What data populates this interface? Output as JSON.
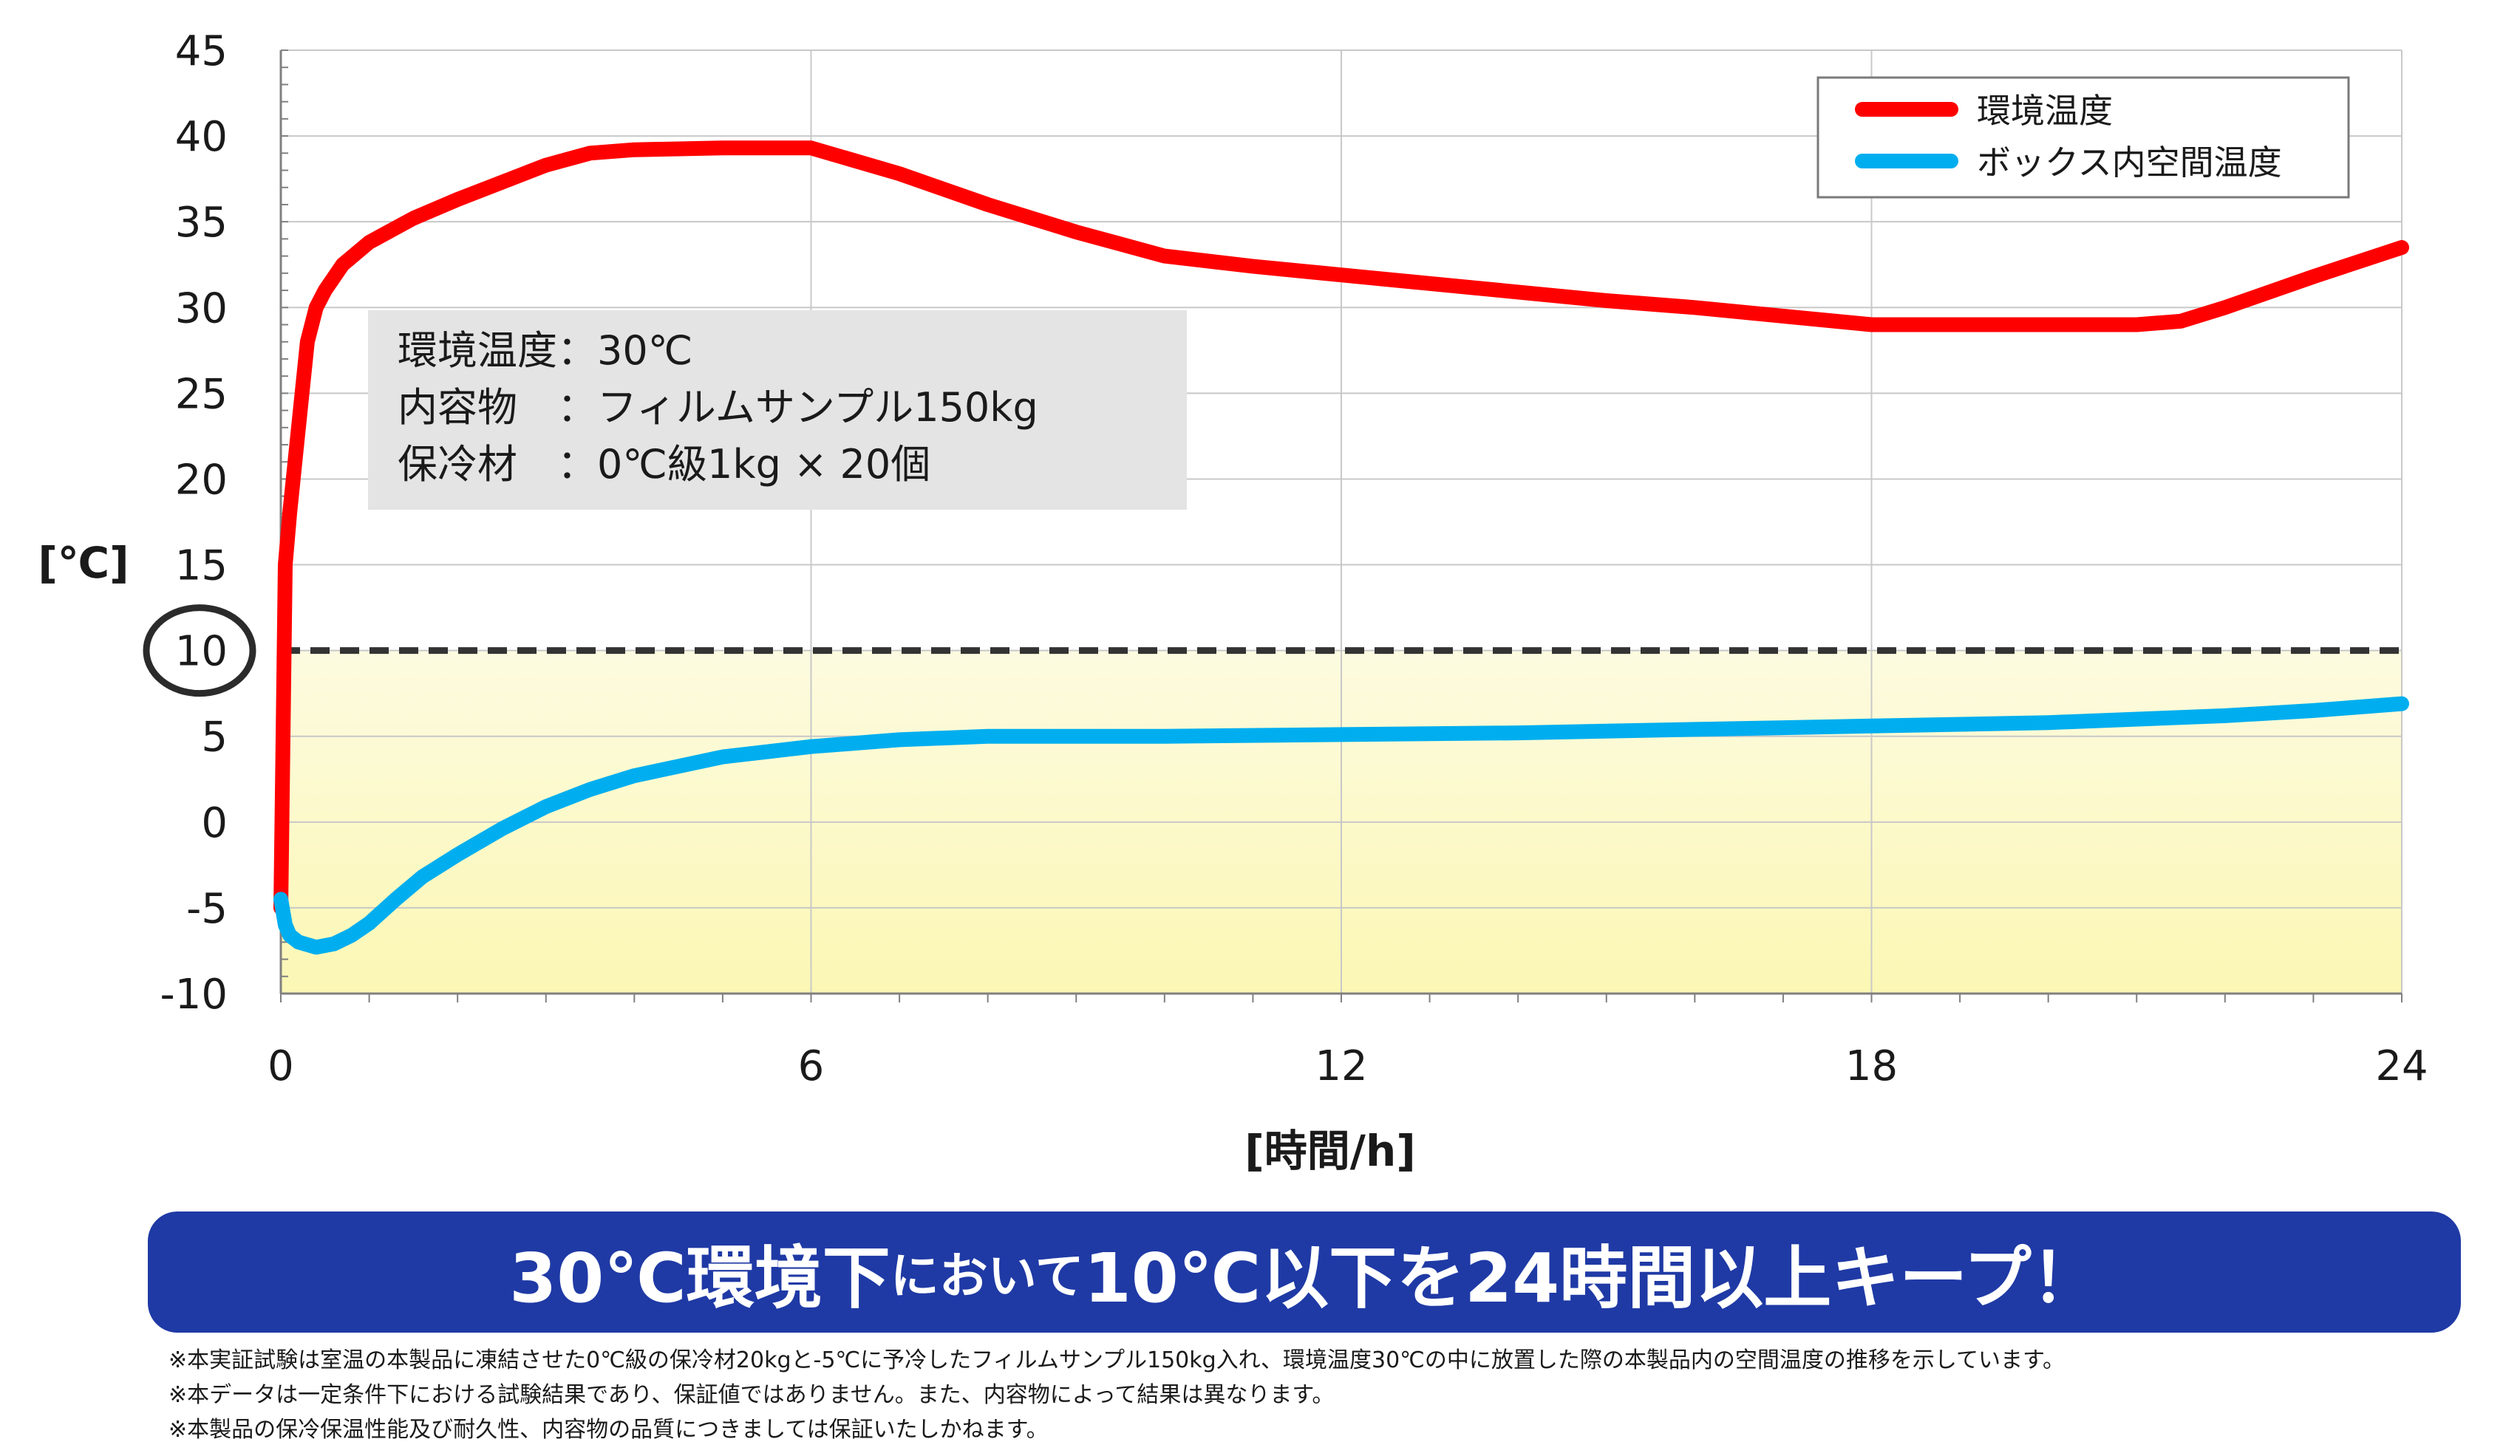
{
  "chart_data": {
    "type": "line",
    "ylabel": "[℃]",
    "xlabel": "[時間/h]",
    "xlim": [
      0,
      24
    ],
    "ylim": [
      -10,
      45
    ],
    "x_ticks": [
      "0",
      "6",
      "12",
      "18",
      "24"
    ],
    "y_ticks": [
      "45",
      "40",
      "35",
      "30",
      "25",
      "20",
      "15",
      "10",
      "5",
      "0",
      "-5",
      "-10"
    ],
    "highlighted_tick": "10",
    "grid": true,
    "legend_position": "top-right",
    "threshold": {
      "value": 10,
      "style": "dashed",
      "color": "#333333"
    },
    "shaded_band": {
      "from": -10,
      "to": 10,
      "color": "#fbf7b4"
    },
    "series": [
      {
        "name": "環境温度",
        "color": "#ff0000",
        "x": [
          0,
          0.05,
          0.1,
          0.2,
          0.3,
          0.4,
          0.5,
          0.7,
          1.0,
          1.5,
          2.0,
          2.5,
          3.0,
          3.5,
          4.0,
          5.0,
          6.0,
          7.0,
          8.0,
          9.0,
          10.0,
          11.0,
          12.0,
          13.0,
          14.0,
          15.0,
          16.0,
          17.0,
          18.0,
          19.0,
          20.0,
          21.0,
          21.5,
          22.0,
          23.0,
          24.0
        ],
        "y": [
          -5,
          15,
          18,
          23,
          28,
          30,
          31,
          32.5,
          33.8,
          35.2,
          36.3,
          37.3,
          38.3,
          39.0,
          39.2,
          39.3,
          39.3,
          37.8,
          36.0,
          34.4,
          33.0,
          32.4,
          31.9,
          31.4,
          30.9,
          30.4,
          30.0,
          29.5,
          29.0,
          29.0,
          29.0,
          29.0,
          29.2,
          30.0,
          31.8,
          33.5
        ]
      },
      {
        "name": "ボックス内空間温度",
        "color": "#00aeef",
        "x": [
          0,
          0.05,
          0.1,
          0.2,
          0.4,
          0.6,
          0.8,
          1.0,
          1.3,
          1.6,
          2.0,
          2.5,
          3.0,
          3.5,
          4.0,
          5.0,
          6.0,
          7.0,
          8.0,
          9.0,
          10.0,
          12.0,
          14.0,
          16.0,
          18.0,
          20.0,
          22.0,
          23.0,
          24.0
        ],
        "y": [
          -4.5,
          -6.0,
          -6.6,
          -7.0,
          -7.3,
          -7.1,
          -6.6,
          -5.9,
          -4.5,
          -3.2,
          -1.9,
          -0.4,
          0.9,
          1.9,
          2.7,
          3.8,
          4.4,
          4.8,
          5.0,
          5.0,
          5.0,
          5.1,
          5.2,
          5.4,
          5.6,
          5.8,
          6.2,
          6.5,
          6.9
        ]
      }
    ]
  },
  "info_box": {
    "line1": "環境温度：30℃",
    "line2": "内容物　：フィルムサンプル150kg",
    "line3": "保冷材　：0℃級1kg × 20個"
  },
  "banner": {
    "part1": "30℃環境下",
    "part2": "において",
    "part3": "10℃以下を24時間以上キープ！"
  },
  "notes": [
    "※本実証試験は室温の本製品に凍結させた0℃級の保冷材20kgと-5℃に予冷したフィルムサンプル150kg入れ、環境温度30℃の中に放置した際の本製品内の空間温度の推移を示しています。",
    "※本データは一定条件下における試験結果であり、保証値ではありません。また、内容物によって結果は異なります。",
    "※本製品の保冷保温性能及び耐久性、内容物の品質につきましては保証いたしかねます。"
  ]
}
